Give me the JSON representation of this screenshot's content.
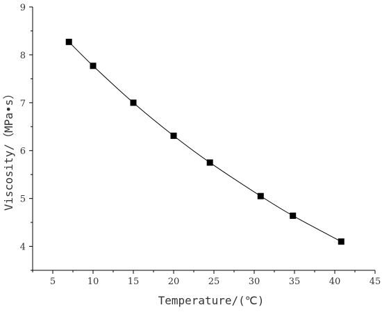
{
  "chart_data": {
    "type": "line",
    "title": "",
    "xlabel": "Temperature/(℃)",
    "ylabel": "Viscosity/（MPa•s）",
    "xlim": [
      2.5,
      45
    ],
    "ylim": [
      3.5,
      9
    ],
    "xticks": [
      5,
      10,
      15,
      20,
      25,
      30,
      35,
      40,
      45
    ],
    "yticks": [
      4,
      5,
      6,
      7,
      8,
      9
    ],
    "grid": false,
    "legend": "none",
    "marker": "square",
    "line_color": "#000000",
    "marker_color": "#000000",
    "series": [
      {
        "x": [
          7,
          10,
          15,
          20,
          24.5,
          30.8,
          34.8,
          40.8
        ],
        "y": [
          8.27,
          7.77,
          7.0,
          6.31,
          5.75,
          5.05,
          4.64,
          4.1
        ]
      }
    ]
  }
}
